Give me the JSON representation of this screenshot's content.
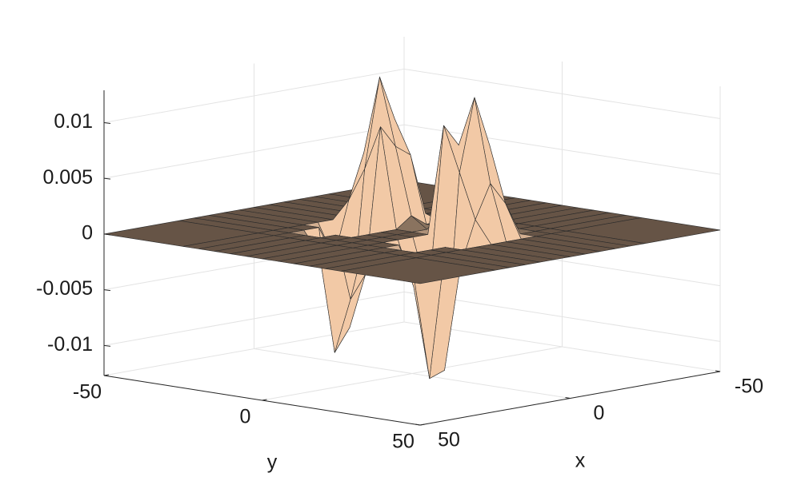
{
  "chart_data": {
    "type": "surface",
    "x": [
      -50,
      -25,
      -20,
      -15,
      -10,
      -5,
      0,
      5,
      10,
      15,
      20,
      25,
      50
    ],
    "y": [
      -50,
      -25,
      -20,
      -15,
      -10,
      -5,
      0,
      5,
      10,
      15,
      20,
      25,
      50
    ],
    "z": [
      [
        0,
        0,
        0,
        0,
        0,
        0,
        0,
        0,
        0,
        0,
        0,
        0,
        0
      ],
      [
        0,
        0,
        0,
        0,
        0,
        0,
        0,
        0,
        0,
        0,
        0,
        0,
        0
      ],
      [
        0,
        0,
        0,
        0,
        0,
        0,
        0,
        0,
        0,
        0,
        0,
        0,
        0
      ],
      [
        0,
        0,
        0,
        0.001,
        0.0005,
        0,
        0,
        0,
        0.0005,
        0.0008,
        0,
        0,
        0
      ],
      [
        0,
        0,
        0.004,
        0.009,
        0.006,
        0,
        0,
        0,
        0.005,
        0.008,
        0.003,
        0,
        0
      ],
      [
        0,
        0,
        0.006,
        0.013,
        0.007,
        0.001,
        0,
        0.002,
        0.008,
        0.0125,
        0.005,
        0,
        0
      ],
      [
        0,
        0,
        0.002,
        0.005,
        0.009,
        0,
        0,
        0,
        0.01,
        0.006,
        0.002,
        0,
        0
      ],
      [
        0,
        0,
        -0.003,
        -0.009,
        -0.004,
        0,
        0,
        0,
        -0.005,
        -0.0115,
        -0.002,
        0,
        0
      ],
      [
        0,
        0,
        0,
        -0.011,
        -0.006,
        0,
        0,
        0,
        -0.004,
        -0.012,
        0,
        0,
        0
      ],
      [
        0,
        0,
        0,
        -0.002,
        0,
        0,
        0,
        0,
        0,
        -0.003,
        0,
        0,
        0
      ],
      [
        0,
        0,
        0,
        0,
        0,
        0,
        0,
        0,
        0,
        0,
        0,
        0,
        0
      ],
      [
        0,
        0,
        0,
        0,
        0,
        0,
        0,
        0,
        0,
        0,
        0,
        0,
        0
      ],
      [
        0,
        0,
        0,
        0,
        0,
        0,
        0,
        0,
        0,
        0,
        0,
        0,
        0
      ]
    ],
    "xlim": [
      -50,
      50
    ],
    "ylim": [
      -50,
      50
    ],
    "zlim": [
      -0.0127,
      0.0129
    ],
    "xticks": [
      -50,
      0,
      50
    ],
    "yticks": [
      -50,
      0,
      50
    ],
    "zticks": [
      -0.01,
      -0.005,
      0,
      0.005,
      0.01
    ],
    "xlabel": "x",
    "ylabel": "y",
    "color": "#f2c9a6",
    "edge_color": "#2b2b2b",
    "grid": true
  }
}
